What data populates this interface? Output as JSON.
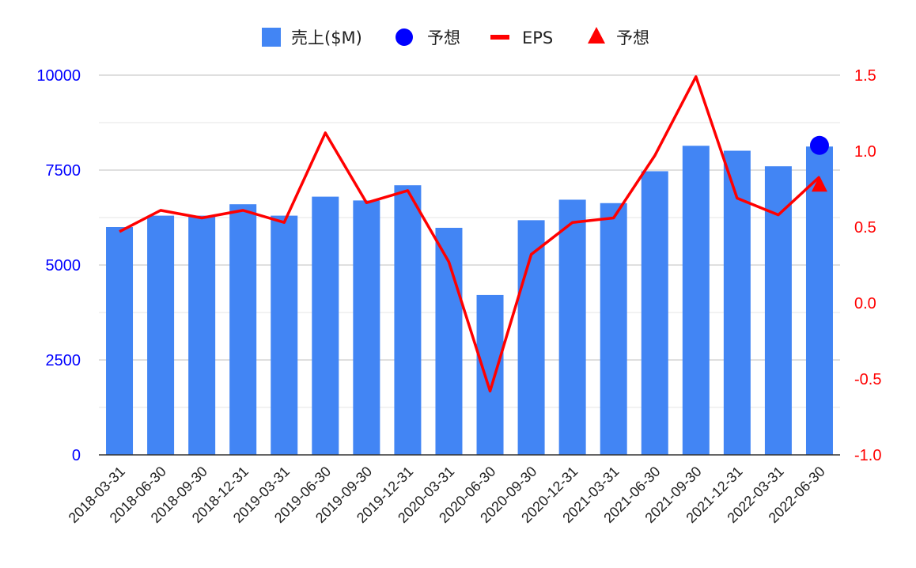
{
  "chart_data": {
    "type": "bar",
    "categories": [
      "2018-03-31",
      "2018-06-30",
      "2018-09-30",
      "2018-12-31",
      "2019-03-31",
      "2019-06-30",
      "2019-09-30",
      "2019-12-31",
      "2020-03-31",
      "2020-06-30",
      "2020-09-30",
      "2020-12-31",
      "2021-03-31",
      "2021-06-30",
      "2021-09-30",
      "2021-12-31",
      "2022-03-31",
      "2022-06-30"
    ],
    "series": [
      {
        "name": "売上($M)",
        "type": "bar",
        "axis": "left",
        "color": "#4285f4",
        "values": [
          6000,
          6300,
          6300,
          6600,
          6300,
          6800,
          6700,
          7100,
          5980,
          4210,
          6180,
          6720,
          6630,
          7470,
          8140,
          8010,
          7600,
          8120
        ]
      },
      {
        "name": "予想",
        "type": "scatter",
        "marker": "circle",
        "axis": "left",
        "color": "#0000ff",
        "points": [
          {
            "x": "2022-06-30",
            "y": 8150
          }
        ]
      },
      {
        "name": "EPS",
        "type": "line",
        "axis": "right",
        "color": "#ff0000",
        "values": [
          0.47,
          0.61,
          0.56,
          0.61,
          0.53,
          1.12,
          0.66,
          0.74,
          0.27,
          -0.58,
          0.32,
          0.53,
          0.56,
          0.97,
          1.49,
          0.69,
          0.58,
          0.83
        ]
      },
      {
        "name": "予想",
        "type": "scatter",
        "marker": "triangle",
        "axis": "right",
        "color": "#ff0000",
        "points": [
          {
            "x": "2022-06-30",
            "y": 0.78
          }
        ]
      }
    ],
    "y_left": {
      "range": [
        0,
        10000
      ],
      "ticks": [
        "0",
        "2500",
        "5000",
        "7500",
        "10000"
      ],
      "color": "#0000ff"
    },
    "y_right": {
      "range": [
        -1.0,
        1.5
      ],
      "ticks": [
        "-1.0",
        "-0.5",
        "0.0",
        "0.5",
        "1.0",
        "1.5"
      ],
      "color": "#ff0000"
    },
    "grid": true,
    "legend_position": "top"
  }
}
